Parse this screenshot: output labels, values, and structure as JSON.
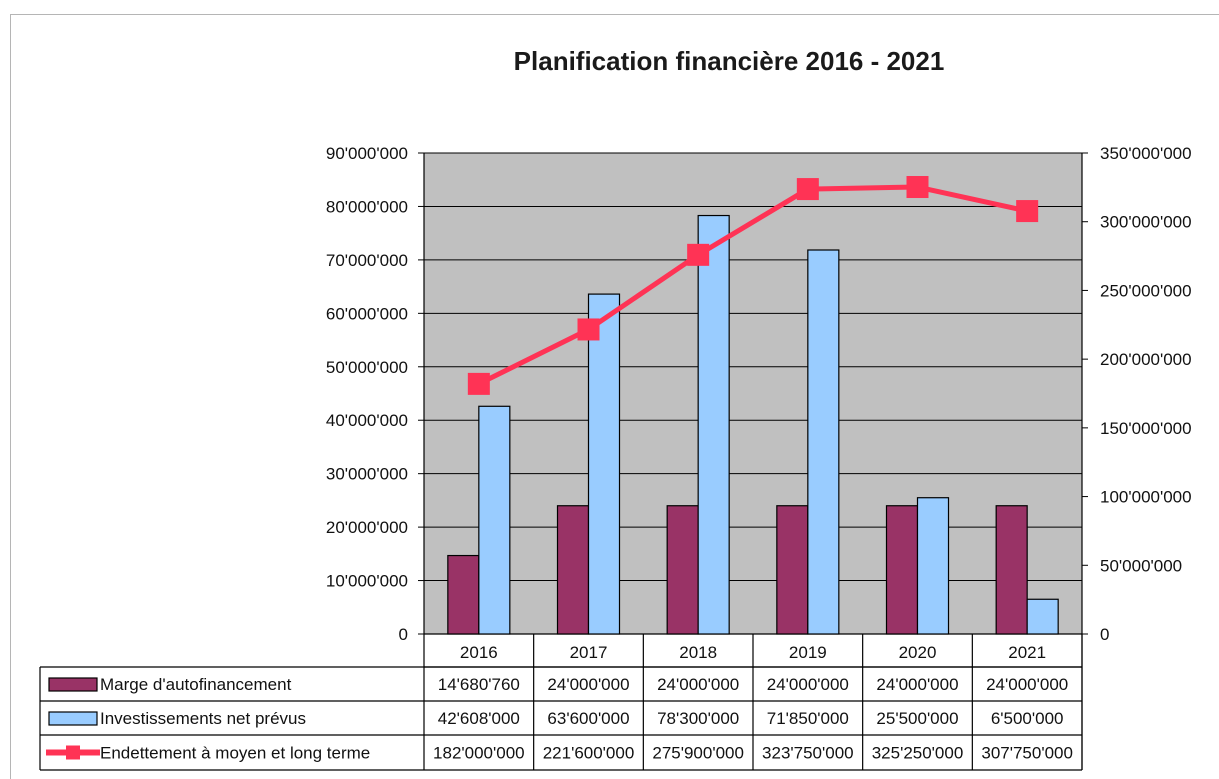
{
  "chart_data": {
    "type": "bar",
    "title": "Planification financière 2016 - 2021",
    "categories": [
      "2016",
      "2017",
      "2018",
      "2019",
      "2020",
      "2021"
    ],
    "ylim": [
      0,
      90000000
    ],
    "y2lim": [
      0,
      350000000
    ],
    "y_ticks": [
      "0",
      "10'000'000",
      "20'000'000",
      "30'000'000",
      "40'000'000",
      "50'000'000",
      "60'000'000",
      "70'000'000",
      "80'000'000",
      "90'000'000"
    ],
    "y2_ticks": [
      "0",
      "50'000'000",
      "100'000'000",
      "150'000'000",
      "200'000'000",
      "250'000'000",
      "300'000'000",
      "350'000'000"
    ],
    "grid": true,
    "series": [
      {
        "name": "Marge d'autofinancement",
        "kind": "bar",
        "axis": "left",
        "color": "#993366",
        "values": [
          14680760,
          24000000,
          24000000,
          24000000,
          24000000,
          24000000
        ],
        "labels": [
          "14'680'760",
          "24'000'000",
          "24'000'000",
          "24'000'000",
          "24'000'000",
          "24'000'000"
        ]
      },
      {
        "name": "Investissements net prévus",
        "kind": "bar",
        "axis": "left",
        "color": "#99ccff",
        "values": [
          42608000,
          63600000,
          78300000,
          71850000,
          25500000,
          6500000
        ],
        "labels": [
          "42'608'000",
          "63'600'000",
          "78'300'000",
          "71'850'000",
          "25'500'000",
          "6'500'000"
        ]
      },
      {
        "name": "Endettement à moyen et long terme",
        "kind": "line",
        "axis": "right",
        "color": "#ff3355",
        "values": [
          182000000,
          221600000,
          275900000,
          323750000,
          325250000,
          307750000
        ],
        "labels": [
          "182'000'000",
          "221'600'000",
          "275'900'000",
          "323'750'000",
          "325'250'000",
          "307'750'000"
        ]
      }
    ],
    "plot_background": "#c0c0c0"
  }
}
